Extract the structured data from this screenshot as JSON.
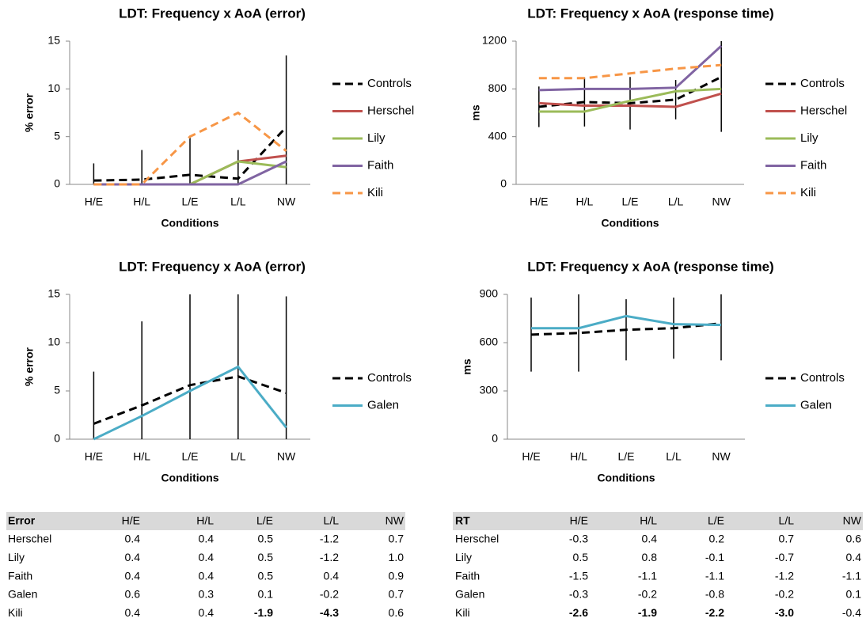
{
  "chart_data": [
    {
      "type": "line",
      "title": "LDT: Frequency x AoA (error)",
      "xlabel": "Conditions",
      "ylabel": "% error",
      "categories": [
        "H/E",
        "H/L",
        "L/E",
        "L/L",
        "NW"
      ],
      "ylim": [
        0,
        15
      ],
      "yticks": [
        0,
        5,
        10,
        15
      ],
      "series": [
        {
          "name": "Controls",
          "color": "#000000",
          "dash": true,
          "values": [
            0.4,
            0.5,
            1.0,
            0.6,
            6.0
          ],
          "errors": [
            1.8,
            3.1,
            3.9,
            3.0,
            7.5
          ]
        },
        {
          "name": "Herschel",
          "color": "#c0504d",
          "dash": false,
          "values": [
            0,
            0,
            0,
            2.4,
            3.0
          ]
        },
        {
          "name": "Lily",
          "color": "#9bbb59",
          "dash": false,
          "values": [
            0,
            0,
            0,
            2.4,
            1.8
          ]
        },
        {
          "name": "Faith",
          "color": "#8064a2",
          "dash": false,
          "values": [
            0,
            0,
            0,
            0,
            2.4
          ]
        },
        {
          "name": "Kili",
          "color": "#f79646",
          "dash": true,
          "values": [
            0,
            0,
            5.0,
            7.5,
            3.5
          ]
        }
      ]
    },
    {
      "type": "line",
      "title": "LDT: Frequency x AoA (response time)",
      "xlabel": "Conditions",
      "ylabel": "ms",
      "categories": [
        "H/E",
        "H/L",
        "L/E",
        "L/L",
        "NW"
      ],
      "ylim": [
        0,
        1200
      ],
      "yticks": [
        0,
        400,
        800,
        1200
      ],
      "series": [
        {
          "name": "Controls",
          "color": "#000000",
          "dash": true,
          "values": [
            650,
            690,
            680,
            710,
            900
          ],
          "errors": [
            170,
            205,
            220,
            165,
            460
          ]
        },
        {
          "name": "Herschel",
          "color": "#c0504d",
          "dash": false,
          "values": [
            680,
            660,
            660,
            650,
            760
          ]
        },
        {
          "name": "Lily",
          "color": "#9bbb59",
          "dash": false,
          "values": [
            610,
            610,
            700,
            780,
            800
          ]
        },
        {
          "name": "Faith",
          "color": "#8064a2",
          "dash": false,
          "values": [
            790,
            800,
            800,
            810,
            1160
          ]
        },
        {
          "name": "Kili",
          "color": "#f79646",
          "dash": true,
          "values": [
            890,
            890,
            930,
            970,
            1000
          ]
        }
      ]
    },
    {
      "type": "line",
      "title": "LDT: Frequency x AoA (error)",
      "xlabel": "Conditions",
      "ylabel": "% error",
      "categories": [
        "H/E",
        "H/L",
        "L/E",
        "L/L",
        "NW"
      ],
      "ylim": [
        0,
        15
      ],
      "yticks": [
        0,
        5,
        10,
        15
      ],
      "series": [
        {
          "name": "Controls",
          "color": "#000000",
          "dash": true,
          "values": [
            1.6,
            3.5,
            5.6,
            6.5,
            4.8
          ],
          "errors": [
            5.4,
            8.7,
            10,
            9,
            10
          ]
        },
        {
          "name": "Galen",
          "color": "#4bacc6",
          "dash": false,
          "values": [
            0,
            2.4,
            5.0,
            7.5,
            1.2
          ]
        }
      ]
    },
    {
      "type": "line",
      "title": "LDT: Frequency x AoA (response time)",
      "xlabel": "Conditions",
      "ylabel": "ms",
      "categories": [
        "H/E",
        "H/L",
        "L/E",
        "L/L",
        "NW"
      ],
      "ylim": [
        0,
        900
      ],
      "yticks": [
        0,
        300,
        600,
        900
      ],
      "series": [
        {
          "name": "Controls",
          "color": "#000000",
          "dash": true,
          "values": [
            650,
            660,
            680,
            690,
            720
          ],
          "errors": [
            230,
            240,
            190,
            190,
            230
          ]
        },
        {
          "name": "Galen",
          "color": "#4bacc6",
          "dash": false,
          "values": [
            690,
            690,
            765,
            715,
            710
          ]
        }
      ]
    }
  ],
  "tables": [
    {
      "header": [
        "Error",
        "H/E",
        "H/L",
        "L/E",
        "L/L",
        "NW"
      ],
      "rows": [
        [
          "Herschel",
          "0.4",
          "0.4",
          "0.5",
          "-1.2",
          "0.7"
        ],
        [
          "Lily",
          "0.4",
          "0.4",
          "0.5",
          "-1.2",
          "1.0"
        ],
        [
          "Faith",
          "0.4",
          "0.4",
          "0.5",
          "0.4",
          "0.9"
        ],
        [
          "Galen",
          "0.6",
          "0.3",
          "0.1",
          "-0.2",
          "0.7"
        ],
        [
          "Kili",
          "0.4",
          "0.4",
          "-1.9",
          "-4.3",
          "0.6"
        ]
      ],
      "bold_cells": [
        [
          4,
          3
        ],
        [
          4,
          4
        ]
      ]
    },
    {
      "header": [
        "RT",
        "H/E",
        "H/L",
        "L/E",
        "L/L",
        "NW"
      ],
      "rows": [
        [
          "Herschel",
          "-0.3",
          "0.4",
          "0.2",
          "0.7",
          "0.6"
        ],
        [
          "Lily",
          "0.5",
          "0.8",
          "-0.1",
          "-0.7",
          "0.4"
        ],
        [
          "Faith",
          "-1.5",
          "-1.1",
          "-1.1",
          "-1.2",
          "-1.1"
        ],
        [
          "Galen",
          "-0.3",
          "-0.2",
          "-0.8",
          "-0.2",
          "0.1"
        ],
        [
          "Kili",
          "-2.6",
          "-1.9",
          "-2.2",
          "-3.0",
          "-0.4"
        ]
      ],
      "bold_cells": [
        [
          4,
          1
        ],
        [
          4,
          2
        ],
        [
          4,
          3
        ],
        [
          4,
          4
        ]
      ]
    }
  ]
}
